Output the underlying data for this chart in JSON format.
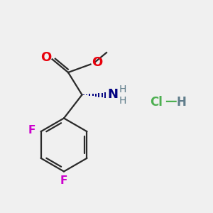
{
  "bg_color": "#f0f0f0",
  "bond_color": "#2a2a2a",
  "o_color": "#e8000b",
  "n_color": "#000080",
  "f1_color": "#cc00cc",
  "f2_color": "#cc00cc",
  "hcl_cl_color": "#4caf50",
  "hcl_h_color": "#607d8b",
  "f1_label": "F",
  "f2_label": "F",
  "n_label": "N",
  "h1_label": "H",
  "h2_label": "H",
  "o1_label": "O",
  "o2_label": "O",
  "hcl_cl": "Cl",
  "hcl_dash": "—",
  "hcl_h": "H"
}
